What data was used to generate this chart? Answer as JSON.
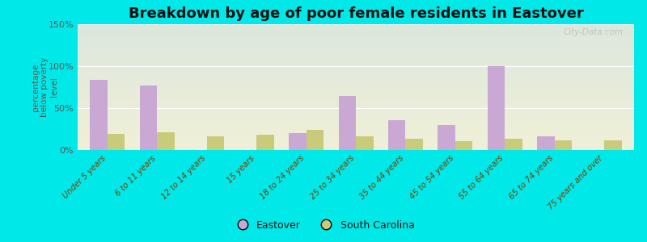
{
  "title": "Breakdown by age of poor female residents in Eastover",
  "ylabel": "percentage\nbelow poverty\nlevel",
  "categories": [
    "Under 5 years",
    "6 to 11 years",
    "12 to 14 years",
    "15 years",
    "18 to 24 years",
    "25 to 34 years",
    "35 to 44 years",
    "45 to 54 years",
    "55 to 64 years",
    "65 to 74 years",
    "75 years and over"
  ],
  "eastover": [
    84,
    77,
    0,
    0,
    20,
    64,
    36,
    30,
    100,
    16,
    0
  ],
  "south_carolina": [
    19,
    21,
    16,
    18,
    24,
    16,
    13,
    11,
    13,
    12,
    12
  ],
  "eastover_color": "#c9a8d4",
  "sc_color": "#c8cb7a",
  "ylim": [
    0,
    150
  ],
  "yticks": [
    0,
    50,
    100,
    150
  ],
  "ytick_labels": [
    "0%",
    "50%",
    "100%",
    "150%"
  ],
  "background_color": "#00e8e8",
  "plot_bg_top": "#dce8dc",
  "plot_bg_bottom": "#f0f0d8",
  "bar_width": 0.35,
  "title_fontsize": 13,
  "legend_labels": [
    "Eastover",
    "South Carolina"
  ],
  "watermark": "City-Data.com",
  "tick_color": "#7b3f00",
  "ytick_color": "#555555"
}
